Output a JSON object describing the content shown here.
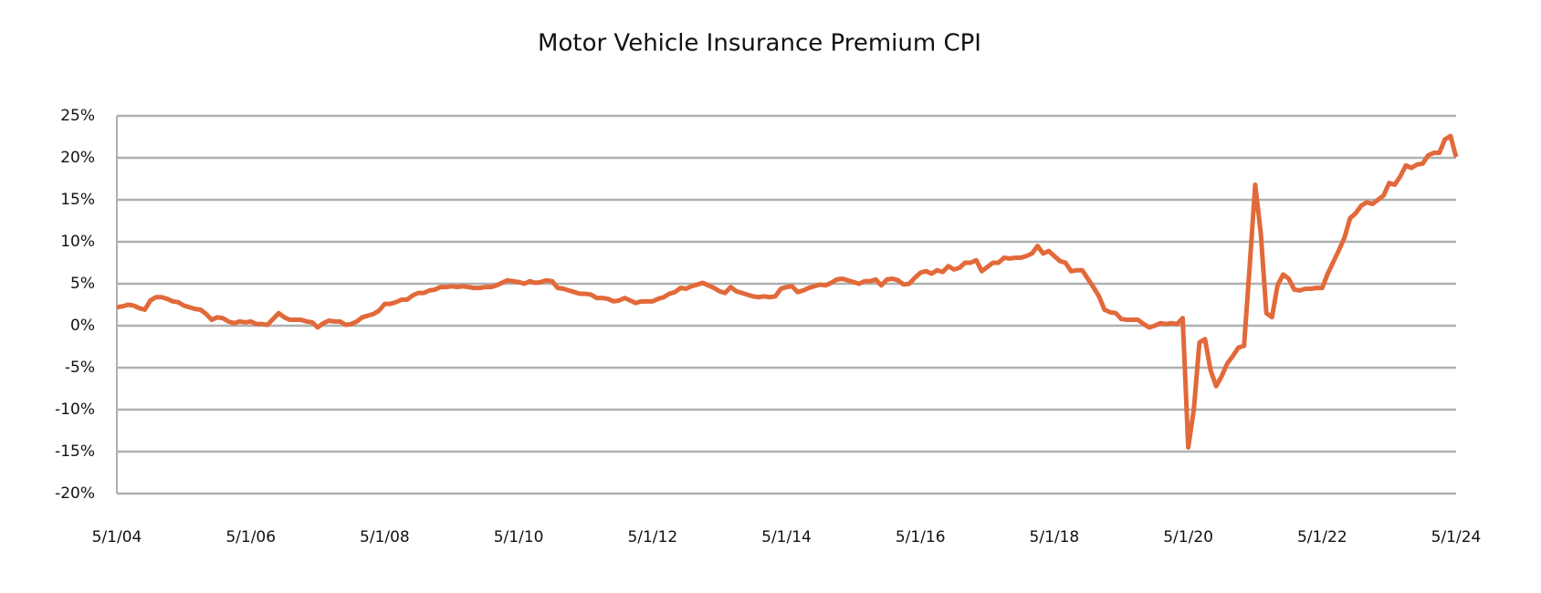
{
  "chart_data": {
    "type": "line",
    "title": "Motor Vehicle Insurance Premium CPI",
    "categories": [
      "5/1/04",
      null,
      null,
      null,
      null,
      null,
      null,
      null,
      null,
      null,
      null,
      null,
      null,
      null,
      null,
      null,
      null,
      null,
      null,
      null,
      null,
      null,
      null,
      null,
      "5/1/06",
      null,
      null,
      null,
      null,
      null,
      null,
      null,
      null,
      null,
      null,
      null,
      null,
      null,
      null,
      null,
      null,
      null,
      null,
      null,
      null,
      null,
      null,
      null,
      "5/1/08",
      null,
      null,
      null,
      null,
      null,
      null,
      null,
      null,
      null,
      null,
      null,
      null,
      null,
      null,
      null,
      null,
      null,
      null,
      null,
      null,
      null,
      null,
      null,
      "5/1/10",
      null,
      null,
      null,
      null,
      null,
      null,
      null,
      null,
      null,
      null,
      null,
      null,
      null,
      null,
      null,
      null,
      null,
      null,
      null,
      null,
      null,
      null,
      null,
      "5/1/12",
      null,
      null,
      null,
      null,
      null,
      null,
      null,
      null,
      null,
      null,
      null,
      null,
      null,
      null,
      null,
      null,
      null,
      null,
      null,
      null,
      null,
      null,
      null,
      "5/1/14",
      null,
      null,
      null,
      null,
      null,
      null,
      null,
      null,
      null,
      null,
      null,
      null,
      null,
      null,
      null,
      null,
      null,
      null,
      null,
      null,
      null,
      null,
      null,
      "5/1/16",
      null,
      null,
      null,
      null,
      null,
      null,
      null,
      null,
      null,
      null,
      null,
      null,
      null,
      null,
      null,
      null,
      null,
      null,
      null,
      null,
      null,
      null,
      null,
      "5/1/18",
      null,
      null,
      null,
      null,
      null,
      null,
      null,
      null,
      null,
      null,
      null,
      null,
      null,
      null,
      null,
      null,
      null,
      null,
      null,
      null,
      null,
      null,
      null,
      "5/1/20",
      null,
      null,
      null,
      null,
      null,
      null,
      null,
      null,
      null,
      null,
      null,
      null,
      null,
      null,
      null,
      null,
      null,
      null,
      null,
      null,
      null,
      null,
      null,
      "5/1/22",
      null,
      null,
      null,
      null,
      null,
      null,
      null,
      null,
      null,
      null,
      null,
      null,
      null,
      null,
      null,
      null,
      null,
      null,
      null,
      null,
      null,
      null,
      null,
      "5/1/24"
    ],
    "series": [
      {
        "color": "#e2693a",
        "values": [
          2.2,
          2.3,
          2.5,
          2.4,
          2.1,
          1.9,
          3.0,
          3.4,
          3.4,
          3.2,
          2.9,
          2.8,
          2.4,
          2.2,
          2.0,
          1.9,
          1.4,
          0.7,
          1.0,
          0.9,
          0.5,
          0.3,
          0.5,
          0.4,
          0.5,
          0.2,
          0.2,
          0.1,
          0.8,
          1.5,
          1.0,
          0.7,
          0.7,
          0.7,
          0.5,
          0.4,
          -0.2,
          0.3,
          0.6,
          0.5,
          0.5,
          0.1,
          0.2,
          0.5,
          1.0,
          1.2,
          1.4,
          1.8,
          2.6,
          2.6,
          2.8,
          3.1,
          3.1,
          3.6,
          3.9,
          3.9,
          4.2,
          4.3,
          4.6,
          4.6,
          4.7,
          4.6,
          4.7,
          4.6,
          4.5,
          4.5,
          4.6,
          4.6,
          4.8,
          5.1,
          5.4,
          5.3,
          5.2,
          5.0,
          5.3,
          5.1,
          5.2,
          5.4,
          5.3,
          4.5,
          4.4,
          4.2,
          4.0,
          3.8,
          3.8,
          3.7,
          3.3,
          3.3,
          3.2,
          2.9,
          3.0,
          3.3,
          3.0,
          2.7,
          2.9,
          2.9,
          2.9,
          3.2,
          3.4,
          3.8,
          4.0,
          4.5,
          4.4,
          4.7,
          4.9,
          5.1,
          4.8,
          4.5,
          4.1,
          3.9,
          4.6,
          4.1,
          3.9,
          3.7,
          3.5,
          3.4,
          3.5,
          3.4,
          3.5,
          4.4,
          4.6,
          4.7,
          4.0,
          4.2,
          4.5,
          4.7,
          4.9,
          4.8,
          5.1,
          5.5,
          5.6,
          5.4,
          5.2,
          5.0,
          5.3,
          5.3,
          5.5,
          4.8,
          5.5,
          5.6,
          5.4,
          4.9,
          5.0,
          5.7,
          6.3,
          6.5,
          6.2,
          6.6,
          6.4,
          7.1,
          6.7,
          6.9,
          7.5,
          7.5,
          7.8,
          6.5,
          7.0,
          7.5,
          7.5,
          8.1,
          8.0,
          8.1,
          8.1,
          8.3,
          8.6,
          9.5,
          8.6,
          8.9,
          8.3,
          7.7,
          7.5,
          6.5,
          6.6,
          6.6,
          5.6,
          4.6,
          3.5,
          1.9,
          1.6,
          1.5,
          0.8,
          0.7,
          0.7,
          0.7,
          0.2,
          -0.2,
          0.0,
          0.3,
          0.2,
          0.3,
          0.2,
          0.9,
          -14.5,
          -10.0,
          -2.0,
          -1.6,
          -5.3,
          -7.2,
          -6.0,
          -4.5,
          -3.6,
          -2.6,
          -2.4,
          7.0,
          16.8,
          11.0,
          1.5,
          1.0,
          4.8,
          6.1,
          5.6,
          4.3,
          4.2,
          4.4,
          4.4,
          4.5,
          4.5,
          6.2,
          7.6,
          9.0,
          10.5,
          12.8,
          13.4,
          14.3,
          14.7,
          14.5,
          15.0,
          15.5,
          17.0,
          16.8,
          17.8,
          19.1,
          18.8,
          19.2,
          19.3,
          20.3,
          20.6,
          20.6,
          22.2,
          22.6,
          20.1
        ]
      }
    ],
    "ylim": [
      -20,
      25
    ],
    "yticks": [
      {
        "value": -20,
        "label": "-20%"
      },
      {
        "value": -15,
        "label": "-15%"
      },
      {
        "value": -10,
        "label": "-10%"
      },
      {
        "value": -5,
        "label": "-5%"
      },
      {
        "value": 0,
        "label": "0%"
      },
      {
        "value": 5,
        "label": "5%"
      },
      {
        "value": 10,
        "label": "10%"
      },
      {
        "value": 15,
        "label": "15%"
      },
      {
        "value": 20,
        "label": "20%"
      },
      {
        "value": 25,
        "label": "25%"
      }
    ],
    "grid": true
  }
}
